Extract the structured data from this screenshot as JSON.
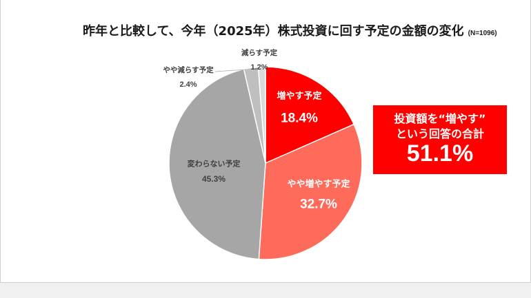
{
  "chart_data": {
    "type": "pie",
    "title": "昨年と比較して、今年（2025年）株式投資に回す予定の金額の変化",
    "note": "(N=1096)",
    "slices": [
      {
        "label": "増やす予定",
        "value": 18.4,
        "value_label": "18.4%",
        "color": "#ff0000"
      },
      {
        "label": "やや増やす予定",
        "value": 32.7,
        "value_label": "32.7%",
        "color": "#ff6b5b"
      },
      {
        "label": "変わらない予定",
        "value": 45.3,
        "value_label": "45.3%",
        "color": "#a6a6a6"
      },
      {
        "label": "やや減らす予定",
        "value": 2.4,
        "value_label": "2.4%",
        "color": "#bfbfbf"
      },
      {
        "label": "減らす予定",
        "value": 1.2,
        "value_label": "1.2%",
        "color": "#d9d9d9"
      }
    ]
  },
  "callout": {
    "line1": "投資額を“増やす”",
    "line2": "という回答の合計",
    "value": "51.1%",
    "color": "#ff0000"
  }
}
